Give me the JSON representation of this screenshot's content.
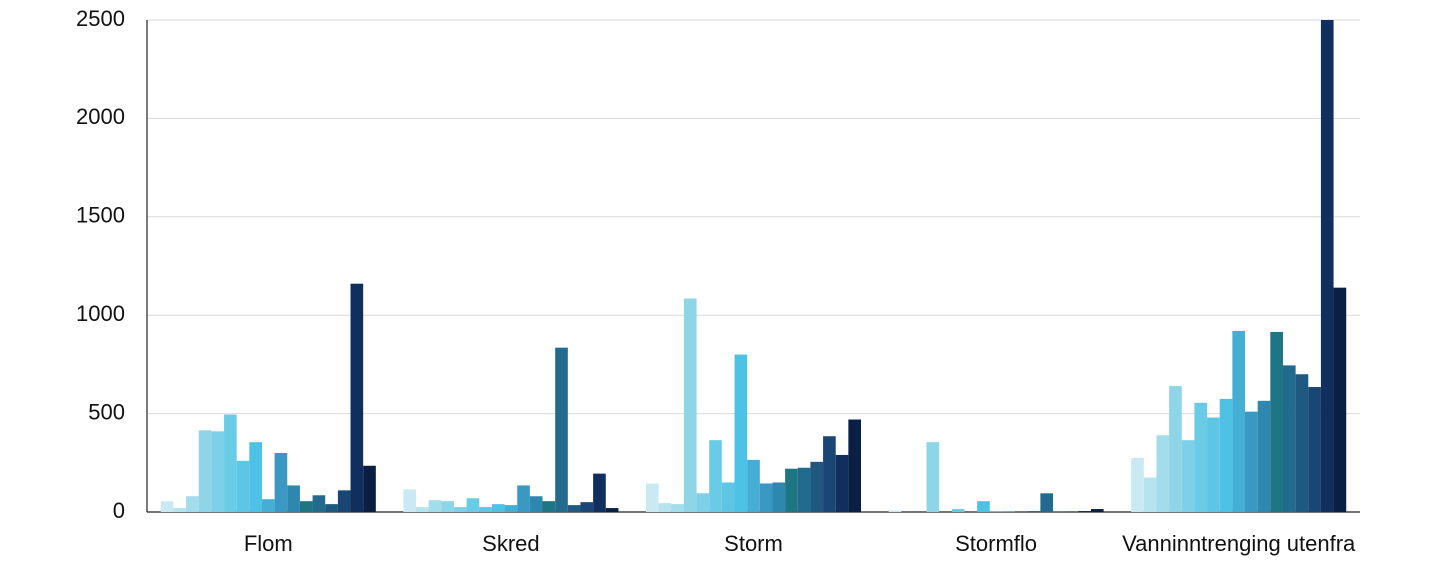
{
  "chart_data": {
    "type": "bar",
    "categories": [
      "Flom",
      "Skred",
      "Storm",
      "Stormflo",
      "Vanninntrenging utenfra"
    ],
    "series": [
      {
        "color": "#c9eaf2",
        "values": [
          55,
          115,
          145,
          8,
          275
        ]
      },
      {
        "color": "#b5e3ee",
        "values": [
          20,
          25,
          45,
          0,
          175
        ]
      },
      {
        "color": "#a3dcea",
        "values": [
          80,
          60,
          40,
          0,
          390
        ]
      },
      {
        "color": "#8fd5e8",
        "values": [
          415,
          55,
          1085,
          355,
          640
        ]
      },
      {
        "color": "#7dd0e7",
        "values": [
          410,
          25,
          95,
          0,
          365
        ]
      },
      {
        "color": "#6acbe6",
        "values": [
          495,
          70,
          365,
          15,
          555
        ]
      },
      {
        "color": "#5cc6e4",
        "values": [
          260,
          25,
          150,
          0,
          480
        ]
      },
      {
        "color": "#4ec2e4",
        "values": [
          355,
          40,
          800,
          55,
          575
        ]
      },
      {
        "color": "#44aed4",
        "values": [
          65,
          35,
          265,
          3,
          920
        ]
      },
      {
        "color": "#3a98c2",
        "values": [
          300,
          135,
          145,
          3,
          510
        ]
      },
      {
        "color": "#2e87ae",
        "values": [
          135,
          80,
          150,
          0,
          565
        ]
      },
      {
        "color": "#1e7584",
        "values": [
          55,
          55,
          220,
          5,
          915
        ]
      },
      {
        "color": "#236a8f",
        "values": [
          85,
          835,
          225,
          95,
          745
        ]
      },
      {
        "color": "#1f5880",
        "values": [
          40,
          35,
          255,
          3,
          700
        ]
      },
      {
        "color": "#1a4675",
        "values": [
          110,
          50,
          385,
          3,
          635
        ]
      },
      {
        "color": "#102f5e",
        "values": [
          1160,
          195,
          290,
          5,
          2500
        ]
      },
      {
        "color": "#0a1f44",
        "values": [
          235,
          20,
          470,
          15,
          1140
        ]
      }
    ],
    "ylim": [
      0,
      2500
    ],
    "yticks": [
      0,
      500,
      1000,
      1500,
      2000,
      2500
    ],
    "grid": true
  }
}
